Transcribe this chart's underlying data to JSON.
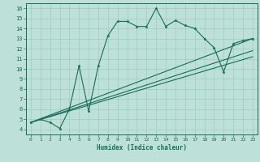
{
  "title": "",
  "xlabel": "Humidex (Indice chaleur)",
  "bg_color": "#bde0d8",
  "line_color": "#1a6b5a",
  "grid_color": "#9dccc4",
  "xlim": [
    -0.5,
    23.5
  ],
  "ylim": [
    3.5,
    16.5
  ],
  "xticks": [
    0,
    1,
    2,
    3,
    4,
    5,
    6,
    7,
    8,
    9,
    10,
    11,
    12,
    13,
    14,
    15,
    16,
    17,
    18,
    19,
    20,
    21,
    22,
    23
  ],
  "yticks": [
    4,
    5,
    6,
    7,
    8,
    9,
    10,
    11,
    12,
    13,
    14,
    15,
    16
  ],
  "main_line_x": [
    0,
    1,
    2,
    3,
    4,
    5,
    6,
    7,
    8,
    9,
    10,
    11,
    12,
    13,
    14,
    15,
    16,
    17,
    18,
    19,
    20,
    21,
    22,
    23
  ],
  "main_line_y": [
    4.7,
    5.0,
    4.7,
    4.1,
    6.0,
    10.3,
    5.8,
    10.3,
    13.3,
    14.7,
    14.7,
    14.2,
    14.2,
    16.0,
    14.2,
    14.8,
    14.3,
    14.0,
    13.0,
    12.1,
    9.7,
    12.5,
    12.8,
    13.0
  ],
  "diag_lines": [
    {
      "x": [
        0,
        23
      ],
      "y": [
        4.7,
        11.2
      ]
    },
    {
      "x": [
        0,
        23
      ],
      "y": [
        4.7,
        11.8
      ]
    },
    {
      "x": [
        0,
        23
      ],
      "y": [
        4.7,
        13.0
      ]
    }
  ]
}
